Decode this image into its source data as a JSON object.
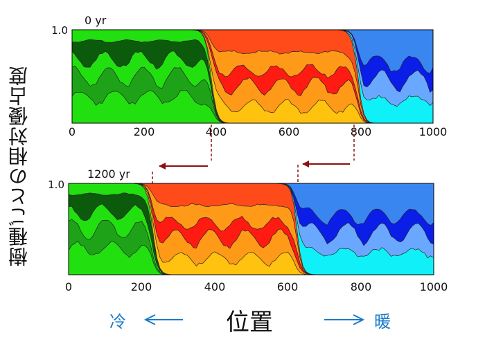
{
  "y_axis_label": "樹種ごとの相対優占度",
  "footer": {
    "cold": "冷",
    "position": "位置",
    "warm": "暖"
  },
  "colors": {
    "boreal_bright": "#22e010",
    "boreal_mid": "#1ea318",
    "boreal_dark": "#0c5a0c",
    "temperate_gold": "#ffc20e",
    "temperate_orange": "#ff9a18",
    "temperate_red": "#ff1a12",
    "temperate_redorange": "#ff4a1a",
    "warm_cyan": "#10f0f8",
    "warm_lightblue": "#6aa8ff",
    "warm_navy": "#0a1ee8",
    "warm_sky": "#3a86f0",
    "shift_arrow": "#8b0f0f"
  },
  "chart_data": [
    {
      "type": "area",
      "title": "0 yr",
      "xlim": [
        0,
        1000
      ],
      "ylim": [
        0,
        1.0
      ],
      "x_ticks": [
        "0",
        "200",
        "400",
        "600",
        "800",
        "1000"
      ],
      "y_ticks": [
        "1.0"
      ],
      "boundaries": [
        385,
        790
      ]
    },
    {
      "type": "area",
      "title": "1200 yr",
      "xlim": [
        0,
        1000
      ],
      "ylim": [
        0,
        1.0
      ],
      "x_ticks": [
        "0",
        "200",
        "400",
        "600",
        "800",
        "1000"
      ],
      "y_ticks": [
        "1.0"
      ],
      "boundaries": [
        230,
        625
      ]
    }
  ]
}
